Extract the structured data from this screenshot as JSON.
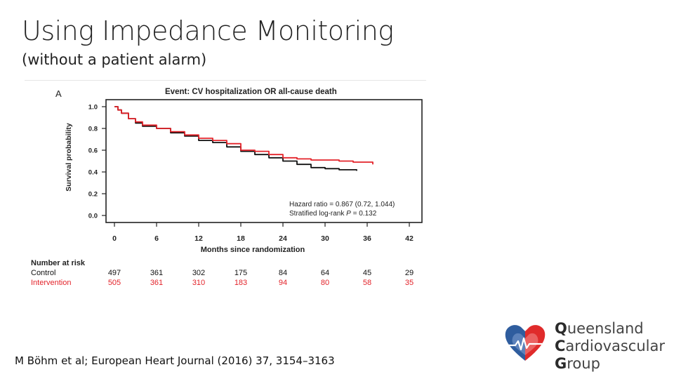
{
  "slide": {
    "title": "Using Impedance Monitoring",
    "subtitle": "(without a patient alarm)",
    "citation": "M Böhm et al; European Heart Journal (2016) 37, 3154–3163"
  },
  "logo": {
    "lines": [
      {
        "initial": "Q",
        "rest": "ueensland"
      },
      {
        "initial": "C",
        "rest": "ardiovascular"
      },
      {
        "initial": "G",
        "rest": "roup"
      }
    ],
    "colors": {
      "red": "#e02b2b",
      "blue": "#2f5d9e",
      "text": "#444444"
    }
  },
  "chart_data": {
    "type": "line",
    "panel_label": "A",
    "title": "Event:  CV hospitalization OR all-cause death",
    "xlabel": "Months since randomization",
    "ylabel": "Survival probability",
    "xlim": [
      0,
      42
    ],
    "ylim": [
      0,
      1.0
    ],
    "xticks": [
      0,
      6,
      12,
      18,
      24,
      30,
      36,
      42
    ],
    "yticks": [
      0.0,
      0.2,
      0.4,
      0.6,
      0.8,
      1.0
    ],
    "ytick_labels": [
      "0.0",
      "0.2",
      "0.4",
      "0.6",
      "0.8",
      "1.0"
    ],
    "series": [
      {
        "name": "Control",
        "color": "#111111",
        "x": [
          0,
          0.5,
          1,
          2,
          3,
          4,
          6,
          8,
          10,
          12,
          14,
          16,
          18,
          20,
          22,
          24,
          26,
          28,
          30,
          32,
          34.5
        ],
        "y": [
          1.0,
          0.97,
          0.94,
          0.89,
          0.85,
          0.82,
          0.8,
          0.76,
          0.73,
          0.69,
          0.67,
          0.63,
          0.59,
          0.56,
          0.53,
          0.5,
          0.47,
          0.44,
          0.43,
          0.42,
          0.41
        ]
      },
      {
        "name": "Intervention",
        "color": "#e3232a",
        "x": [
          0,
          0.5,
          1,
          2,
          3,
          4,
          6,
          8,
          10,
          12,
          14,
          16,
          18,
          20,
          22,
          24,
          26,
          28,
          30,
          32,
          34,
          36.8
        ],
        "y": [
          1.0,
          0.97,
          0.94,
          0.89,
          0.86,
          0.83,
          0.8,
          0.77,
          0.74,
          0.71,
          0.69,
          0.66,
          0.6,
          0.59,
          0.56,
          0.53,
          0.52,
          0.51,
          0.51,
          0.5,
          0.49,
          0.47
        ]
      }
    ],
    "annotations": {
      "hazard": "Hazard ratio = 0.867 (0.72, 1.044)",
      "logrank_prefix": "Stratified log-rank ",
      "logrank_p": "P",
      "logrank_suffix": " = 0.132"
    },
    "risk_table": {
      "header": "Number at risk",
      "rows": [
        {
          "label": "Control",
          "color": "#111111",
          "values": [
            "497",
            "361",
            "302",
            "175",
            "84",
            "64",
            "45",
            "29"
          ]
        },
        {
          "label": "Intervention",
          "color": "#e3232a",
          "values": [
            "505",
            "361",
            "310",
            "183",
            "94",
            "80",
            "58",
            "35"
          ]
        }
      ]
    }
  }
}
